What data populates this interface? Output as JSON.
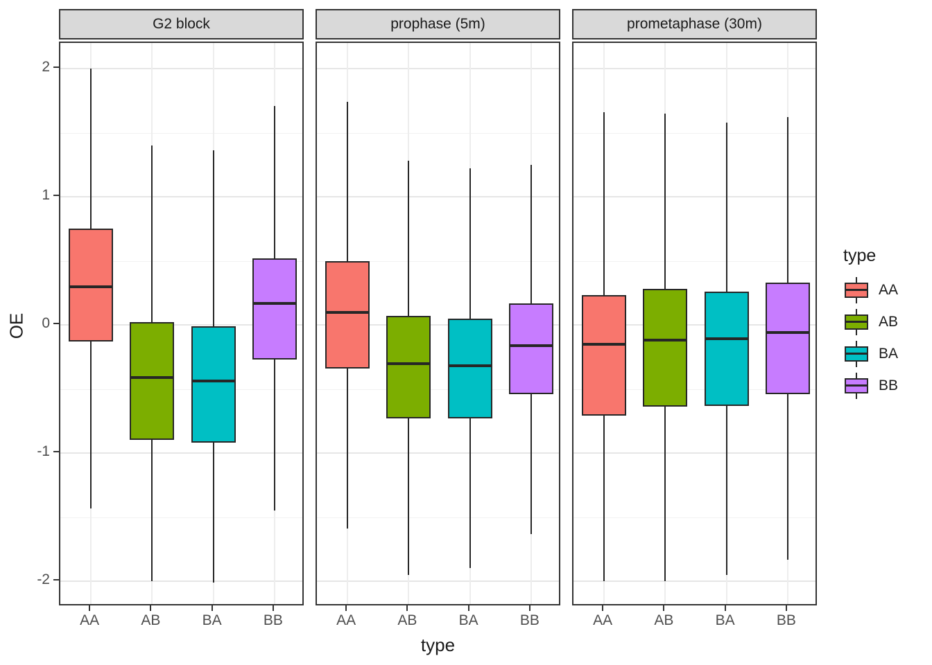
{
  "axes": {
    "y_title": "OE",
    "x_title": "type",
    "y_ticks": [
      {
        "label": "2",
        "value": 2
      },
      {
        "label": "1",
        "value": 1
      },
      {
        "label": "0",
        "value": 0
      },
      {
        "label": "-1",
        "value": -1
      },
      {
        "label": "-2",
        "value": -2
      }
    ],
    "x_categories": [
      "AA",
      "AB",
      "BA",
      "BB"
    ]
  },
  "legend": {
    "title": "type",
    "position": "right",
    "entries": [
      {
        "label": "AA",
        "color": "#F8766D"
      },
      {
        "label": "AB",
        "color": "#7CAE00"
      },
      {
        "label": "BA",
        "color": "#00BFC4"
      },
      {
        "label": "BB",
        "color": "#C77CFF"
      }
    ]
  },
  "chart_data": {
    "type": "boxplot",
    "xlabel": "type",
    "ylabel": "OE",
    "ylim": [
      -2.2,
      2.2
    ],
    "grid": "on",
    "categories": [
      "AA",
      "AB",
      "BA",
      "BB"
    ],
    "colors": {
      "AA": "#F8766D",
      "AB": "#7CAE00",
      "BA": "#00BFC4",
      "BB": "#C77CFF"
    },
    "facets": [
      {
        "label": "G2 block",
        "boxes": [
          {
            "type": "AA",
            "whisker_low": -1.43,
            "q1": -0.13,
            "median": 0.3,
            "q3": 0.75,
            "whisker_high": 2.0
          },
          {
            "type": "AB",
            "whisker_low": -2.0,
            "q1": -0.9,
            "median": -0.41,
            "q3": 0.02,
            "whisker_high": 1.4
          },
          {
            "type": "BA",
            "whisker_low": -2.01,
            "q1": -0.92,
            "median": -0.44,
            "q3": -0.01,
            "whisker_high": 1.36
          },
          {
            "type": "BB",
            "whisker_low": -1.45,
            "q1": -0.27,
            "median": 0.17,
            "q3": 0.52,
            "whisker_high": 1.71
          }
        ]
      },
      {
        "label": "prophase (5m)",
        "boxes": [
          {
            "type": "AA",
            "whisker_low": -1.59,
            "q1": -0.34,
            "median": 0.1,
            "q3": 0.5,
            "whisker_high": 1.74
          },
          {
            "type": "AB",
            "whisker_low": -1.95,
            "q1": -0.73,
            "median": -0.3,
            "q3": 0.07,
            "whisker_high": 1.28
          },
          {
            "type": "BA",
            "whisker_low": -1.9,
            "q1": -0.73,
            "median": -0.32,
            "q3": 0.05,
            "whisker_high": 1.22
          },
          {
            "type": "BB",
            "whisker_low": -1.63,
            "q1": -0.54,
            "median": -0.16,
            "q3": 0.17,
            "whisker_high": 1.25
          }
        ]
      },
      {
        "label": "prometaphase (30m)",
        "boxes": [
          {
            "type": "AA",
            "whisker_low": -2.0,
            "q1": -0.71,
            "median": -0.15,
            "q3": 0.23,
            "whisker_high": 1.66
          },
          {
            "type": "AB",
            "whisker_low": -2.0,
            "q1": -0.64,
            "median": -0.12,
            "q3": 0.28,
            "whisker_high": 1.65
          },
          {
            "type": "BA",
            "whisker_low": -1.95,
            "q1": -0.63,
            "median": -0.11,
            "q3": 0.26,
            "whisker_high": 1.58
          },
          {
            "type": "BB",
            "whisker_low": -1.83,
            "q1": -0.54,
            "median": -0.06,
            "q3": 0.33,
            "whisker_high": 1.62
          }
        ]
      }
    ]
  }
}
